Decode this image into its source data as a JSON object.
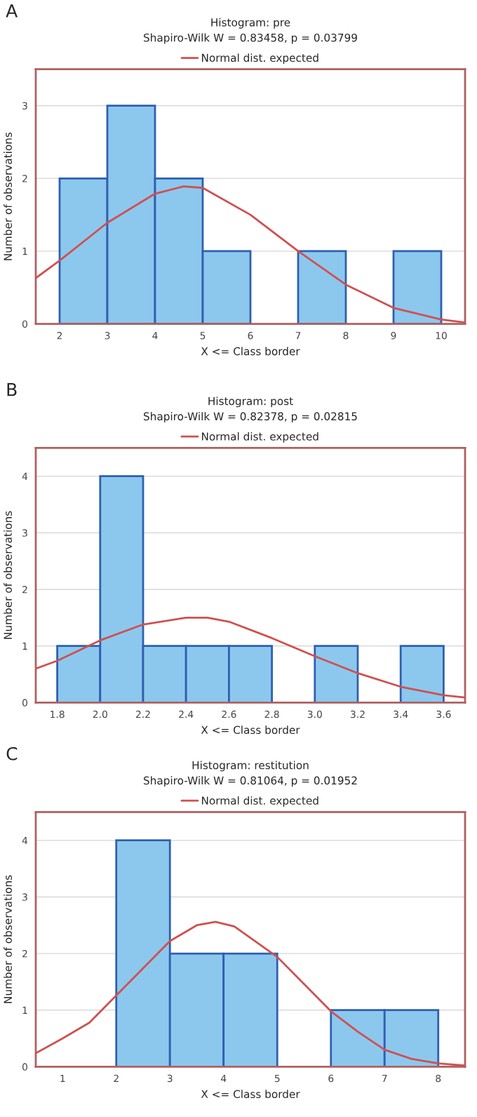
{
  "chart_data": [
    {
      "type": "histogram",
      "title": "Histogram: pre",
      "subtitle": "Shapiro-Wilk W = 0.83458, p = 0.03799",
      "xlabel": "X <= Class border",
      "ylabel": "Number of observations",
      "annotations": [
        "A"
      ],
      "color": "#8cc8ee",
      "bins": [
        2,
        3,
        4,
        5,
        6,
        7,
        8,
        9,
        10
      ],
      "values": [
        2,
        3,
        2,
        1,
        0,
        1,
        0,
        1
      ],
      "series": [
        {
          "type": "line",
          "name": "Normal dist. expected",
          "color": "#d05050",
          "x": [
            1.5,
            2,
            3,
            4,
            4.6,
            5,
            6,
            7,
            8,
            9,
            10,
            10.5
          ],
          "values": [
            0.63,
            0.87,
            1.39,
            1.79,
            1.89,
            1.87,
            1.5,
            1.0,
            0.54,
            0.22,
            0.06,
            0.02
          ]
        }
      ],
      "xlim": [
        1.5,
        10.5
      ],
      "ylim": [
        0,
        3.5
      ],
      "xticks": [
        2,
        3,
        4,
        5,
        6,
        7,
        8,
        9,
        10
      ],
      "yticks": [
        0,
        1,
        2,
        3
      ],
      "grid": "y",
      "legend": "top"
    },
    {
      "type": "histogram",
      "title": "Histogram: post",
      "subtitle": "Shapiro-Wilk W = 0.82378, p = 0.02815",
      "xlabel": "X <= Class border",
      "ylabel": "Number of observations",
      "annotations": [
        "B"
      ],
      "color": "#8cc8ee",
      "bins": [
        1.8,
        2.0,
        2.2,
        2.4,
        2.6,
        2.8,
        3.0,
        3.2,
        3.4,
        3.6
      ],
      "values": [
        1,
        4,
        1,
        1,
        1,
        0,
        1,
        0,
        1
      ],
      "series": [
        {
          "type": "line",
          "name": "Normal dist. expected",
          "color": "#d05050",
          "x": [
            1.7,
            1.8,
            2.0,
            2.2,
            2.4,
            2.5,
            2.6,
            2.8,
            3.0,
            3.2,
            3.4,
            3.6,
            3.7
          ],
          "values": [
            0.6,
            0.74,
            1.1,
            1.38,
            1.5,
            1.5,
            1.43,
            1.14,
            0.82,
            0.52,
            0.28,
            0.13,
            0.09
          ]
        }
      ],
      "xlim": [
        1.7,
        3.7
      ],
      "ylim": [
        0,
        4.5
      ],
      "xticks": [
        {
          "value": 1.8,
          "label": "1.8"
        },
        {
          "value": 2.0,
          "label": "2.0"
        },
        {
          "value": 2.2,
          "label": "2.2"
        },
        {
          "value": 2.4,
          "label": "2.4"
        },
        {
          "value": 2.6,
          "label": "2.6"
        },
        {
          "value": 2.8,
          "label": "2.8"
        },
        {
          "value": 3.0,
          "label": "3.0"
        },
        {
          "value": 3.2,
          "label": "3.2"
        },
        {
          "value": 3.4,
          "label": "3.4"
        },
        {
          "value": 3.6,
          "label": "3.6"
        }
      ],
      "yticks": [
        0,
        1,
        2,
        3,
        4
      ],
      "grid": "y",
      "legend": "top"
    },
    {
      "type": "histogram",
      "title": "Histogram: restitution",
      "subtitle": "Shapiro-Wilk W = 0.81064, p = 0.01952",
      "xlabel": "X <= Class border",
      "ylabel": "Number of observations",
      "annotations": [
        "C"
      ],
      "color": "#8cc8ee",
      "bins": [
        2,
        3,
        4,
        5,
        6,
        7,
        8
      ],
      "values": [
        4,
        2,
        2,
        0,
        1,
        1
      ],
      "series": [
        {
          "type": "line",
          "name": "Normal dist. expected",
          "color": "#d05050",
          "x": [
            0.5,
            1,
            1.5,
            2,
            2.5,
            3,
            3.5,
            3.85,
            4.2,
            5,
            5.5,
            6,
            6.5,
            7,
            7.5,
            8,
            8.5
          ],
          "values": [
            0.24,
            0.5,
            0.78,
            1.26,
            1.74,
            2.22,
            2.5,
            2.56,
            2.48,
            1.94,
            1.46,
            0.98,
            0.62,
            0.3,
            0.14,
            0.06,
            0.02
          ]
        }
      ],
      "xlim": [
        0.5,
        8.5
      ],
      "ylim": [
        0,
        4.5
      ],
      "xticks": [
        1,
        2,
        3,
        4,
        5,
        6,
        7,
        8
      ],
      "yticks": [
        0,
        1,
        2,
        3,
        4
      ],
      "grid": "y",
      "legend": "top"
    }
  ]
}
